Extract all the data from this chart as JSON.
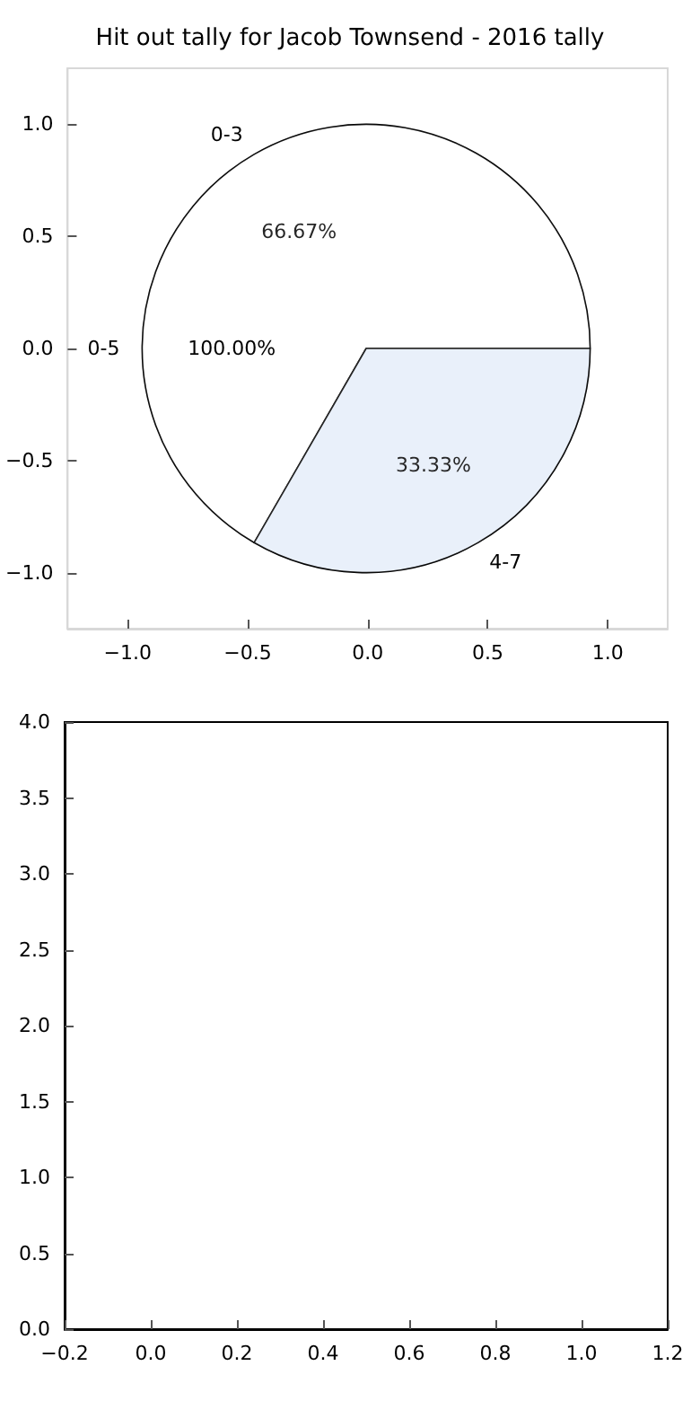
{
  "chart_data": [
    {
      "type": "scatter",
      "title": "Hit out tally for Jacob Townsend - 2016 tally",
      "xlim": [
        -1.25,
        1.25
      ],
      "ylim": [
        -1.25,
        1.25
      ],
      "xticks": [
        {
          "value": -1,
          "label": "−1.0"
        },
        {
          "value": -0.5,
          "label": "−0.5"
        },
        {
          "value": 0,
          "label": "0.0"
        },
        {
          "value": 0.5,
          "label": "0.5"
        },
        {
          "value": 1,
          "label": "1.0"
        }
      ],
      "yticks": [
        {
          "value": -1,
          "label": "−1.0"
        },
        {
          "value": -0.5,
          "label": "−0.5"
        },
        {
          "value": 0,
          "label": "0.0"
        },
        {
          "value": 0.5,
          "label": "0.5"
        },
        {
          "value": 1,
          "label": "1.0"
        }
      ]
    },
    {
      "type": "pie",
      "categories": [
        "0-5"
      ],
      "values": [
        100
      ],
      "colors": [
        "#ffffff"
      ],
      "value_labels": [
        "100.00%"
      ]
    },
    {
      "type": "pie",
      "categories": [
        "0-3",
        "4-7"
      ],
      "values": [
        66.67,
        33.33
      ],
      "colors": [
        "#ffffff",
        "#e6eefa"
      ],
      "value_labels": [
        "66.67%",
        "33.33%"
      ]
    },
    {
      "type": "scatter",
      "xlim": [
        -0.2,
        1.2
      ],
      "ylim": [
        0,
        4
      ],
      "xticks": [
        {
          "value": -0.2,
          "label": "−0.2"
        },
        {
          "value": 0,
          "label": "0.0"
        },
        {
          "value": 0.2,
          "label": "0.2"
        },
        {
          "value": 0.4,
          "label": "0.4"
        },
        {
          "value": 0.6,
          "label": "0.6"
        },
        {
          "value": 0.8,
          "label": "0.8"
        },
        {
          "value": 1,
          "label": "1.0"
        },
        {
          "value": 1.2,
          "label": "1.2"
        }
      ],
      "yticks": [
        {
          "value": 0,
          "label": "0.0"
        },
        {
          "value": 0.5,
          "label": "0.5"
        },
        {
          "value": 1,
          "label": "1.0"
        },
        {
          "value": 1.5,
          "label": "1.5"
        },
        {
          "value": 2,
          "label": "2.0"
        },
        {
          "value": 2.5,
          "label": "2.5"
        },
        {
          "value": 3,
          "label": "3.0"
        },
        {
          "value": 3.5,
          "label": "3.5"
        },
        {
          "value": 4,
          "label": "4.0"
        }
      ]
    }
  ]
}
